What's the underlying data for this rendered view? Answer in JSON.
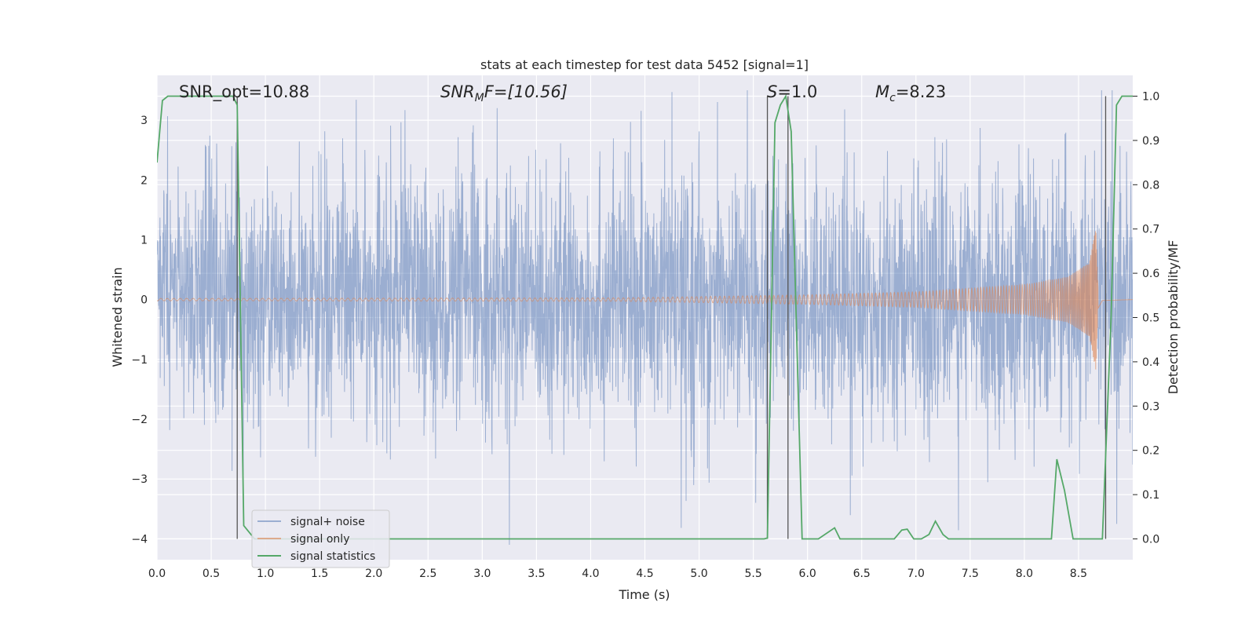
{
  "chart_data": {
    "type": "line",
    "title": "stats at each timestep for test data 5452 [signal=1]",
    "xlabel": "Time (s)",
    "ylabel": "Whitened strain",
    "y2label": "Detection probability/MF",
    "xlim": [
      0,
      9
    ],
    "ylim": [
      -4.35,
      3.75
    ],
    "y2lim": [
      -0.047,
      1.047
    ],
    "xticks": [
      "0.0",
      "0.5",
      "1.0",
      "1.5",
      "2.0",
      "2.5",
      "3.0",
      "3.5",
      "4.0",
      "4.5",
      "5.0",
      "5.5",
      "6.0",
      "6.5",
      "7.0",
      "7.5",
      "8.0",
      "8.5"
    ],
    "yticks": [
      "3",
      "2",
      "1",
      "0",
      "−1",
      "−2",
      "−3",
      "−4"
    ],
    "y2ticks": [
      "1.0",
      "0.9",
      "0.8",
      "0.7",
      "0.6",
      "0.5",
      "0.4",
      "0.3",
      "0.2",
      "0.1",
      "0.0"
    ],
    "grid": true,
    "legend_position": "lower-left",
    "annotations": {
      "snr_opt": "SNR_opt=10.88",
      "snr_mf_base": "SNR",
      "snr_mf_sub": "M",
      "snr_mf_rest": "F=[10.56]",
      "s_base": "S",
      "s_rest": "=1.0",
      "mc_base": "M",
      "mc_sub": "c",
      "mc_rest": "=8.23"
    },
    "series": [
      {
        "name": "signal+ noise",
        "color": "#4c72b0",
        "kind": "noise",
        "amplitude_typical": 1.0,
        "amplitude_peak": 3.5
      },
      {
        "name": "signal only",
        "color": "#dd8452",
        "kind": "chirp",
        "envelope": {
          "x": [
            0,
            4.3,
            5.0,
            6.0,
            7.0,
            8.0,
            8.4,
            8.6,
            8.66,
            8.68,
            8.72,
            9.0
          ],
          "y": [
            0.02,
            0.03,
            0.05,
            0.08,
            0.13,
            0.25,
            0.38,
            0.62,
            1.2,
            0.2,
            0.02,
            0.0
          ]
        }
      },
      {
        "name": "signal statistics",
        "color": "#55a868",
        "axis": "right",
        "x": [
          0,
          0.05,
          0.1,
          0.7,
          0.74,
          0.8,
          0.9,
          5.6,
          5.63,
          5.7,
          5.75,
          5.8,
          5.85,
          5.95,
          6.1,
          6.25,
          6.3,
          6.8,
          6.87,
          6.92,
          6.98,
          7.05,
          7.12,
          7.18,
          7.25,
          7.3,
          8.25,
          8.3,
          8.37,
          8.45,
          8.5,
          8.72,
          8.8,
          8.85,
          8.9,
          9.0
        ],
        "y": [
          0.85,
          0.99,
          1.0,
          1.0,
          0.98,
          0.03,
          0.0,
          0.0,
          0.002,
          0.94,
          0.98,
          1.0,
          0.92,
          0.0,
          0.0,
          0.025,
          0.0,
          0.0,
          0.02,
          0.022,
          0.0,
          0.0,
          0.01,
          0.04,
          0.01,
          0.0,
          0.0,
          0.18,
          0.11,
          0.0,
          0.0,
          0.0,
          0.5,
          0.98,
          1.0,
          1.0
        ]
      }
    ],
    "vlines": {
      "x": [
        0.74,
        5.63,
        5.82,
        8.75
      ],
      "color": "#555555"
    }
  }
}
